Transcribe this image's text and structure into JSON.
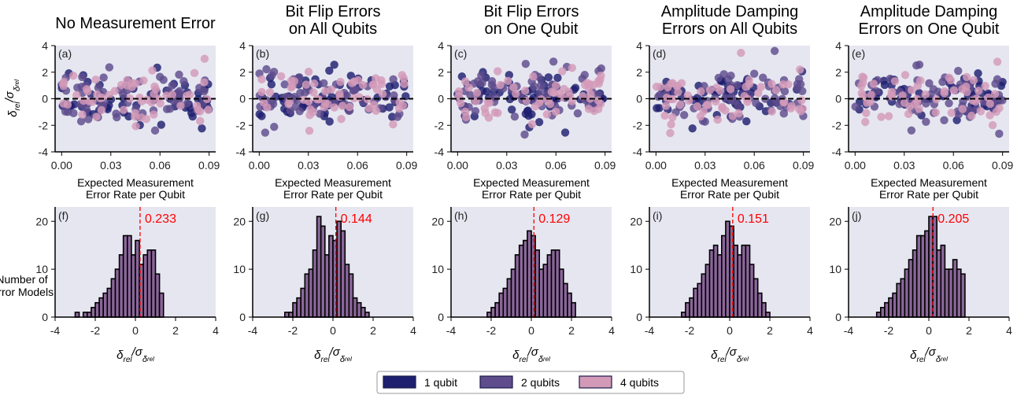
{
  "colors": {
    "one_qubit": "#1f1f70",
    "two_qubits": "#5e4c8c",
    "four_qubits": "#d39ab8",
    "hist_fill": "#8a6699",
    "panel_bg": "#e6e6f0",
    "mean_line": "#ff0000"
  },
  "column_titles": [
    [
      "No Measurement Error"
    ],
    [
      "Bit Flip Errors",
      "on All Qubits"
    ],
    [
      "Bit Flip Errors",
      "on One Qubit"
    ],
    [
      "Amplitude Damping",
      "Errors on All Qubits"
    ],
    [
      "Amplitude Damping",
      "Errors on One Qubit"
    ]
  ],
  "scatter_xlabel": [
    "Expected Measurement",
    "Error Rate per Qubit"
  ],
  "scatter_ylabel": {
    "main": "δ",
    "sub1": "rel",
    "mid": "/σ",
    "sub2": "δ",
    "sub3": "rel"
  },
  "hist_ylabel": [
    "Number of",
    "Error Models"
  ],
  "hist_xlabel": {
    "main": "δ",
    "sub1": "rel",
    "mid": "/σ",
    "sub2": "δ",
    "sub3": "rel"
  },
  "legend": [
    {
      "label": "1 qubit",
      "color": "#1f1f70"
    },
    {
      "label": "2 qubits",
      "color": "#5e4c8c"
    },
    {
      "label": "4 qubits",
      "color": "#d39ab8"
    }
  ],
  "chart_data": [
    {
      "panel": "(a)",
      "type": "scatter",
      "xlabel": "Expected Measurement Error Rate per Qubit",
      "xlim": [
        -0.004,
        0.094
      ],
      "ylim": [
        -4,
        4
      ],
      "xticks": [
        "0.00",
        "0.03",
        "0.06",
        "0.09"
      ],
      "yticks": [
        "-4",
        "-2",
        "0",
        "2",
        "4"
      ],
      "hline": 0,
      "series": [
        {
          "name": "1 qubit",
          "seed": 11
        },
        {
          "name": "2 qubits",
          "seed": 12
        },
        {
          "name": "4 qubits",
          "seed": 13
        }
      ],
      "points_per_series": 60
    },
    {
      "panel": "(b)",
      "type": "scatter",
      "xlim": [
        -0.004,
        0.094
      ],
      "ylim": [
        -4,
        4
      ],
      "xticks": [
        "0.00",
        "0.03",
        "0.06",
        "0.09"
      ],
      "yticks": [
        "-4",
        "-2",
        "0",
        "2",
        "4"
      ],
      "hline": 0,
      "series": [
        {
          "name": "1 qubit",
          "seed": 21
        },
        {
          "name": "2 qubits",
          "seed": 22
        },
        {
          "name": "4 qubits",
          "seed": 23
        }
      ],
      "points_per_series": 60
    },
    {
      "panel": "(c)",
      "type": "scatter",
      "xlim": [
        -0.004,
        0.094
      ],
      "ylim": [
        -4,
        4
      ],
      "xticks": [
        "0.00",
        "0.03",
        "0.06",
        "0.09"
      ],
      "yticks": [
        "-4",
        "-2",
        "0",
        "2",
        "4"
      ],
      "hline": 0,
      "series": [
        {
          "name": "1 qubit",
          "seed": 31
        },
        {
          "name": "2 qubits",
          "seed": 32
        },
        {
          "name": "4 qubits",
          "seed": 33
        }
      ],
      "points_per_series": 60
    },
    {
      "panel": "(d)",
      "type": "scatter",
      "xlim": [
        -0.004,
        0.094
      ],
      "ylim": [
        -4,
        4
      ],
      "xticks": [
        "0.00",
        "0.03",
        "0.06",
        "0.09"
      ],
      "yticks": [
        "-4",
        "-2",
        "0",
        "2",
        "4"
      ],
      "hline": 0,
      "series": [
        {
          "name": "1 qubit",
          "seed": 41
        },
        {
          "name": "2 qubits",
          "seed": 42
        },
        {
          "name": "4 qubits",
          "seed": 43
        }
      ],
      "points_per_series": 60
    },
    {
      "panel": "(e)",
      "type": "scatter",
      "xlim": [
        -0.004,
        0.094
      ],
      "ylim": [
        -4,
        4
      ],
      "xticks": [
        "0.00",
        "0.03",
        "0.06",
        "0.09"
      ],
      "yticks": [
        "-4",
        "-2",
        "0",
        "2",
        "4"
      ],
      "hline": 0,
      "series": [
        {
          "name": "1 qubit",
          "seed": 51
        },
        {
          "name": "2 qubits",
          "seed": 52
        },
        {
          "name": "4 qubits",
          "seed": 53
        }
      ],
      "points_per_series": 60
    },
    {
      "panel": "(f)",
      "type": "bar",
      "xlim": [
        -4,
        4
      ],
      "ylim": [
        0,
        23
      ],
      "xticks": [
        "-4",
        "-2",
        "0",
        "2",
        "4"
      ],
      "yticks": [
        "0",
        "10",
        "20"
      ],
      "mean": 0.233,
      "mean_label": "0.233",
      "bin_start": -3.0,
      "bin_width": 0.2,
      "counts": [
        1,
        0,
        1,
        1,
        2,
        3,
        4,
        5,
        6,
        8,
        10,
        13,
        17,
        17,
        13,
        16,
        11,
        13,
        14,
        14,
        9,
        5
      ]
    },
    {
      "panel": "(g)",
      "type": "bar",
      "xlim": [
        -4,
        4
      ],
      "ylim": [
        0,
        23
      ],
      "xticks": [
        "-4",
        "-2",
        "0",
        "2",
        "4"
      ],
      "yticks": [
        "0",
        "10",
        "20"
      ],
      "mean": 0.144,
      "mean_label": "0.144",
      "bin_start": -2.4,
      "bin_width": 0.2,
      "counts": [
        1,
        1,
        3,
        4,
        6,
        9,
        10,
        14,
        21,
        19,
        13,
        17,
        16,
        20,
        18,
        11,
        9,
        4,
        3,
        2,
        1
      ]
    },
    {
      "panel": "(h)",
      "type": "bar",
      "xlim": [
        -4,
        4
      ],
      "ylim": [
        0,
        23
      ],
      "xticks": [
        "-4",
        "-2",
        "0",
        "2",
        "4"
      ],
      "yticks": [
        "0",
        "10",
        "20"
      ],
      "mean": 0.129,
      "mean_label": "0.129",
      "bin_start": -2.2,
      "bin_width": 0.2,
      "counts": [
        1,
        2,
        3,
        5,
        6,
        8,
        10,
        13,
        15,
        16,
        18,
        17,
        14,
        10,
        11,
        13,
        14,
        14,
        10,
        7,
        5,
        3
      ]
    },
    {
      "panel": "(i)",
      "type": "bar",
      "xlim": [
        -4,
        4
      ],
      "ylim": [
        0,
        23
      ],
      "xticks": [
        "-4",
        "-2",
        "0",
        "2",
        "4"
      ],
      "yticks": [
        "0",
        "10",
        "20"
      ],
      "mean": 0.151,
      "mean_label": "0.151",
      "bin_start": -2.4,
      "bin_width": 0.2,
      "counts": [
        1,
        3,
        4,
        6,
        7,
        9,
        11,
        14,
        15,
        13,
        17,
        20,
        19,
        15,
        13,
        15,
        15,
        11,
        8,
        5,
        3,
        1
      ]
    },
    {
      "panel": "(j)",
      "type": "bar",
      "xlim": [
        -4,
        4
      ],
      "ylim": [
        0,
        23
      ],
      "xticks": [
        "-4",
        "-2",
        "0",
        "2",
        "4"
      ],
      "yticks": [
        "0",
        "10",
        "20"
      ],
      "mean": 0.205,
      "mean_label": "0.205",
      "bin_start": -2.6,
      "bin_width": 0.2,
      "counts": [
        1,
        2,
        3,
        4,
        5,
        7,
        8,
        10,
        12,
        14,
        17,
        17,
        18,
        21,
        21,
        14,
        15,
        10,
        10,
        12,
        10,
        9
      ]
    }
  ]
}
